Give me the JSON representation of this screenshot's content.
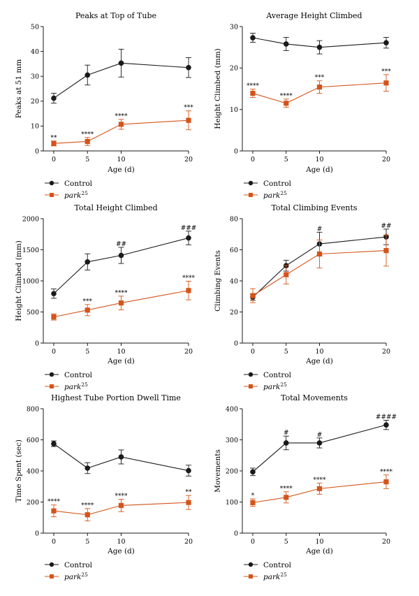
{
  "legend": {
    "control": "Control",
    "park": "park",
    "park_sup": "25"
  },
  "colors": {
    "control": "#1a1a1a",
    "park": "#d4541a"
  },
  "chart_data": [
    {
      "type": "line",
      "title": "Peaks at Top of Tube",
      "xlabel": "Age (d)",
      "ylabel": "Peaks at 51 mm",
      "x": [
        0,
        5,
        10,
        20
      ],
      "xticks": [
        0,
        5,
        10,
        20
      ],
      "ylim": [
        0,
        50
      ],
      "yticks": [
        0,
        10,
        20,
        30,
        40,
        50
      ],
      "series": [
        {
          "key": "control",
          "values": [
            21.2,
            30.5,
            35.3,
            33.5
          ],
          "errors": [
            2.0,
            4.0,
            5.6,
            4.0
          ],
          "labels": [
            "",
            "",
            "",
            ""
          ]
        },
        {
          "key": "park",
          "values": [
            3.0,
            3.8,
            10.7,
            12.3
          ],
          "errors": [
            1.0,
            1.6,
            2.0,
            3.8
          ],
          "labels": [
            "**",
            "****",
            "****",
            "***"
          ]
        }
      ]
    },
    {
      "type": "line",
      "title": "Average Height Climbed",
      "xlabel": "Age (d)",
      "ylabel": "Height Climbed (mm)",
      "x": [
        0,
        5,
        10,
        20
      ],
      "xticks": [
        0,
        5,
        10,
        20
      ],
      "ylim": [
        0,
        30
      ],
      "yticks": [
        0,
        10,
        20,
        30
      ],
      "series": [
        {
          "key": "control",
          "values": [
            27.3,
            25.8,
            25.0,
            26.1
          ],
          "errors": [
            1.1,
            1.6,
            1.6,
            1.3
          ],
          "labels": [
            "",
            "",
            "",
            ""
          ]
        },
        {
          "key": "park",
          "values": [
            13.9,
            11.5,
            15.4,
            16.4
          ],
          "errors": [
            1.0,
            1.0,
            1.5,
            2.0
          ],
          "labels": [
            "****",
            "****",
            "***",
            "***"
          ]
        }
      ]
    },
    {
      "type": "line",
      "title": "Total Height Climbed",
      "xlabel": "Age (d)",
      "ylabel": "Height Climbed (mm)",
      "x": [
        0,
        5,
        10,
        20
      ],
      "xticks": [
        0,
        5,
        10,
        20
      ],
      "ylim": [
        0,
        2000
      ],
      "yticks": [
        0,
        500,
        1000,
        1500,
        2000
      ],
      "series": [
        {
          "key": "control",
          "values": [
            795,
            1305,
            1410,
            1690
          ],
          "errors": [
            75,
            130,
            130,
            110
          ],
          "labels": [
            "",
            "",
            "##",
            "###"
          ]
        },
        {
          "key": "park",
          "values": [
            420,
            530,
            645,
            845
          ],
          "errors": [
            50,
            90,
            110,
            150
          ],
          "labels": [
            "",
            "***",
            "****",
            "****"
          ]
        }
      ]
    },
    {
      "type": "line",
      "title": "Total Climbing Events",
      "xlabel": "Age (d)",
      "ylabel": "Climbing Events",
      "x": [
        0,
        5,
        10,
        20
      ],
      "xticks": [
        0,
        5,
        10,
        20
      ],
      "ylim": [
        0,
        80
      ],
      "yticks": [
        0,
        20,
        40,
        60,
        80
      ],
      "series": [
        {
          "key": "control",
          "values": [
            29.5,
            49.8,
            63.8,
            68.3
          ],
          "errors": [
            2.0,
            3.5,
            7.5,
            5.0
          ],
          "labels": [
            "",
            "",
            "#",
            "##"
          ]
        },
        {
          "key": "park",
          "values": [
            30.5,
            44.0,
            57.3,
            59.5
          ],
          "errors": [
            4.5,
            6.0,
            9.0,
            10.0
          ],
          "labels": [
            "",
            "",
            "",
            ""
          ]
        }
      ]
    },
    {
      "type": "line",
      "title": "Highest Tube Portion Dwell Time",
      "xlabel": "Age (d)",
      "ylabel": "Time Spent (sec)",
      "x": [
        0,
        5,
        10,
        20
      ],
      "xticks": [
        0,
        5,
        10,
        20
      ],
      "ylim": [
        0,
        800
      ],
      "yticks": [
        0,
        200,
        400,
        600,
        800
      ],
      "series": [
        {
          "key": "control",
          "values": [
            575,
            418,
            490,
            402
          ],
          "errors": [
            18,
            35,
            45,
            35
          ],
          "labels": [
            "",
            "",
            "",
            ""
          ]
        },
        {
          "key": "park",
          "values": [
            143,
            118,
            178,
            197
          ],
          "errors": [
            38,
            40,
            40,
            45
          ],
          "labels": [
            "****",
            "****",
            "****",
            "**"
          ]
        }
      ]
    },
    {
      "type": "line",
      "title": "Total Movements",
      "xlabel": "Age (d)",
      "ylabel": "Movements",
      "x": [
        0,
        5,
        10,
        20
      ],
      "xticks": [
        0,
        5,
        10,
        20
      ],
      "ylim": [
        0,
        400
      ],
      "yticks": [
        0,
        100,
        200,
        300,
        400
      ],
      "series": [
        {
          "key": "control",
          "values": [
            197,
            290,
            290,
            348
          ],
          "errors": [
            12,
            22,
            16,
            15
          ],
          "labels": [
            "",
            "#",
            "#",
            "####"
          ]
        },
        {
          "key": "park",
          "values": [
            98,
            115,
            143,
            165
          ],
          "errors": [
            12,
            18,
            18,
            22
          ],
          "labels": [
            "*",
            "****",
            "****",
            "****"
          ]
        }
      ]
    }
  ]
}
